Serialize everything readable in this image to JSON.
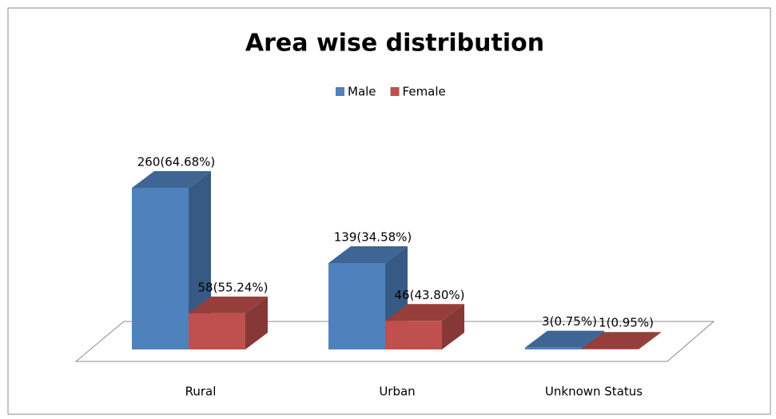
{
  "chart_data": {
    "type": "bar3d",
    "title": "Area wise distribution",
    "categories": [
      "Rural",
      "Urban",
      "Unknown Status"
    ],
    "series": [
      {
        "name": "Male",
        "color": "#4f81bd",
        "values": [
          260,
          139,
          3
        ],
        "value_labels": [
          "260(64.68%)",
          "139(34.58%)",
          "3(0.75%)"
        ]
      },
      {
        "name": "Female",
        "color": "#c0504d",
        "values": [
          58,
          46,
          1
        ],
        "value_labels": [
          "58(55.24%)",
          "46(43.80%)",
          "1(0.95%)"
        ]
      }
    ],
    "legend": "top"
  }
}
